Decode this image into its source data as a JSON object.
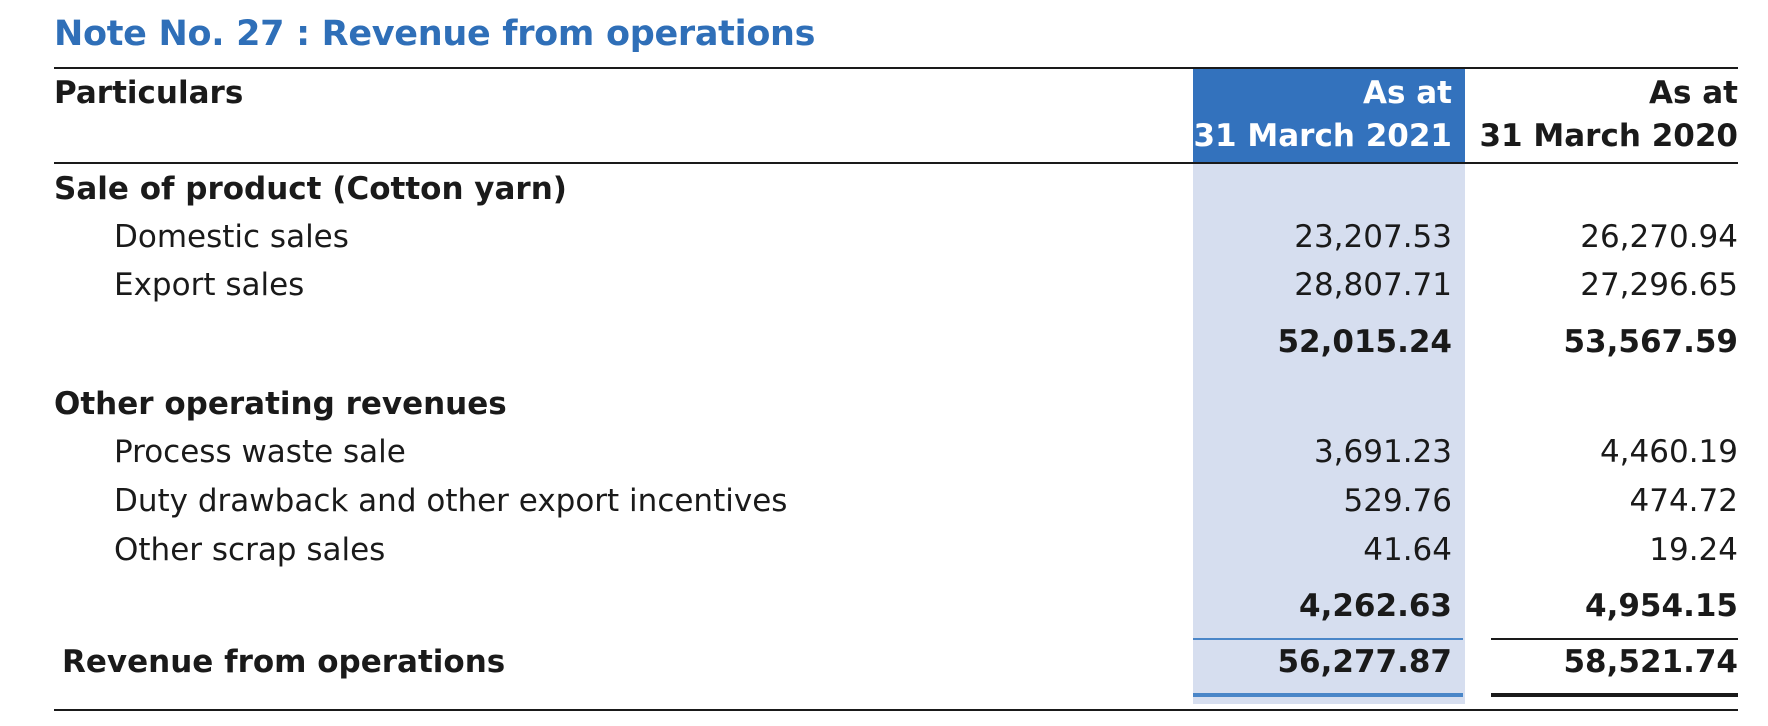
{
  "note_title": "Note No. 27 : Revenue from operations",
  "header": {
    "particulars": "Particulars",
    "col1_line1": "As at",
    "col1_line2": "31 March 2021",
    "col2_line1": "As at",
    "col2_line2": "31 March 2020"
  },
  "sections": [
    {
      "heading": "Sale of product (Cotton yarn)",
      "rows": [
        {
          "label": "Domestic sales",
          "v2021": "23,207.53",
          "v2020": "26,270.94"
        },
        {
          "label": "Export sales",
          "v2021": "28,807.71",
          "v2020": "27,296.65"
        }
      ],
      "subtotal": {
        "v2021": "52,015.24",
        "v2020": "53,567.59"
      }
    },
    {
      "heading": "Other operating revenues",
      "rows": [
        {
          "label": "Process waste sale",
          "v2021": "3,691.23",
          "v2020": "4,460.19"
        },
        {
          "label": "Duty drawback and other export incentives",
          "v2021": "529.76",
          "v2020": "474.72"
        },
        {
          "label": "Other scrap sales",
          "v2021": "41.64",
          "v2020": "19.24"
        }
      ],
      "subtotal": {
        "v2021": "4,262.63",
        "v2020": "4,954.15"
      }
    }
  ],
  "total": {
    "label": "Revenue from operations",
    "v2021": "56,277.87",
    "v2020": "58,521.74"
  },
  "colors": {
    "accent": "#2f6fb8",
    "header_fill": "#3372bd",
    "column_fill": "#d6deef"
  }
}
